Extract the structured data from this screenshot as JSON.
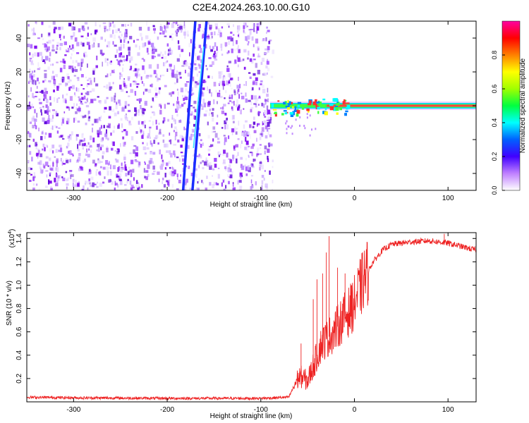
{
  "title": "C2E4.2024.263.10.00.G10",
  "chart_data": [
    {
      "type": "heatmap",
      "xlabel": "Height of straight line (km)",
      "ylabel": "Frequency (Hz)",
      "xlim": [
        -350,
        130
      ],
      "ylim": [
        -50,
        50
      ],
      "xticks": [
        -300,
        -200,
        -100,
        0,
        100
      ],
      "yticks": [
        -40,
        -20,
        0,
        20,
        40
      ],
      "colorbar": {
        "label": "Normalized spectral amplitude",
        "range": [
          0,
          1
        ],
        "ticks": [
          "0.0",
          "0.2",
          "0.4",
          "0.6",
          "0.8"
        ],
        "colors": [
          "#ffffff",
          "#8f00ff",
          "#0000ff",
          "#00ffff",
          "#00ff00",
          "#ffff00",
          "#ff8000",
          "#ff0000",
          "#ff00aa"
        ]
      },
      "features": {
        "noise_region_x": [
          -350,
          -88
        ],
        "streak_1": {
          "x": [
            -183,
            -170
          ],
          "y": [
            -50,
            50
          ]
        },
        "streak_2": {
          "x": [
            -173,
            -158
          ],
          "y": [
            -50,
            50
          ]
        },
        "carrier_line_x": [
          -90,
          130
        ],
        "carrier_line_y": 0
      }
    },
    {
      "type": "line",
      "xlabel": "Height of straight line (km)",
      "ylabel": "SNR (10 * v/v)",
      "multiplier": "(x10",
      "multiplier_exp": "4",
      "xlim": [
        -350,
        130
      ],
      "ylim": [
        0,
        1.45
      ],
      "xticks": [
        -300,
        -200,
        -100,
        0,
        100
      ],
      "yticks": [
        "0.2",
        "0.4",
        "0.6",
        "0.8",
        "1.0",
        "1.2",
        "1.4"
      ],
      "line_color": "#ee2222",
      "profile": {
        "x": [
          -350,
          -300,
          -200,
          -100,
          -70,
          -62,
          -58,
          -50,
          -42,
          -35,
          -28,
          -20,
          -12,
          -5,
          0,
          10,
          20,
          30,
          40,
          60,
          80,
          100,
          110,
          120,
          130
        ],
        "y": [
          0.04,
          0.035,
          0.03,
          0.03,
          0.04,
          0.18,
          0.22,
          0.18,
          0.35,
          0.5,
          0.55,
          0.62,
          0.72,
          0.78,
          0.85,
          1.05,
          1.2,
          1.3,
          1.35,
          1.37,
          1.38,
          1.36,
          1.34,
          1.32,
          1.3
        ]
      },
      "spikes": [
        {
          "x": -57,
          "y": 0.5
        },
        {
          "x": -44,
          "y": 0.88
        },
        {
          "x": -40,
          "y": 1.05
        },
        {
          "x": -34,
          "y": 1.1
        },
        {
          "x": -30,
          "y": 1.28
        },
        {
          "x": -27,
          "y": 1.42
        },
        {
          "x": -18,
          "y": 1.15
        },
        {
          "x": -10,
          "y": 1.1
        },
        {
          "x": -3,
          "y": 1.0
        },
        {
          "x": 96,
          "y": 1.44
        }
      ]
    }
  ]
}
